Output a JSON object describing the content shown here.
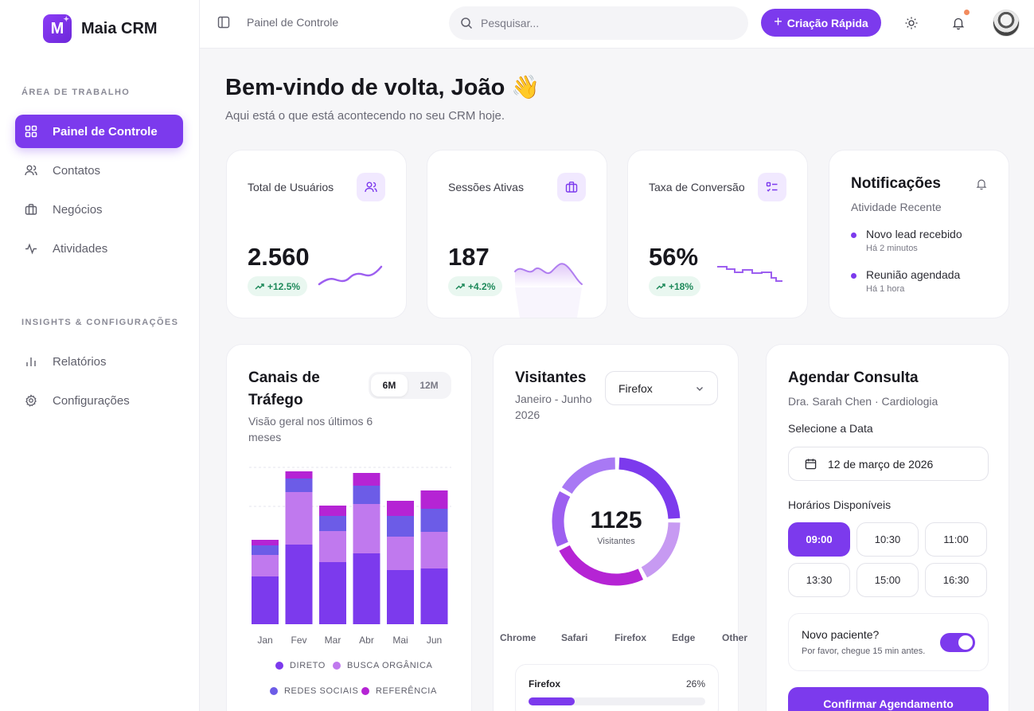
{
  "brand": {
    "logo_letter": "M",
    "name": "Maia CRM"
  },
  "sidebar": {
    "section_workspace": "ÁREA DE TRABALHO",
    "section_insights": "INSIGHTS & CONFIGURAÇÕES",
    "workspace_items": [
      {
        "label": "Painel de Controle",
        "icon": "grid-icon",
        "active": true
      },
      {
        "label": "Contatos",
        "icon": "users-icon"
      },
      {
        "label": "Negócios",
        "icon": "briefcase-icon"
      },
      {
        "label": "Atividades",
        "icon": "activity-icon"
      }
    ],
    "insight_items": [
      {
        "label": "Relatórios",
        "icon": "bar-chart-icon"
      },
      {
        "label": "Configurações",
        "icon": "gear-icon"
      }
    ]
  },
  "header": {
    "breadcrumb": "Painel de Controle",
    "search_placeholder": "Pesquisar...",
    "quick_create": "Criação Rápida"
  },
  "welcome": {
    "title": "Bem-vindo de volta, João 👋",
    "subtitle": "Aqui está o que está acontecendo no seu CRM hoje."
  },
  "stats": [
    {
      "title": "Total de Usuários",
      "value": "2.560",
      "change": "+12.5%",
      "icon": "users-icon"
    },
    {
      "title": "Sessões Ativas",
      "value": "187",
      "change": "+4.2%",
      "icon": "briefcase-icon"
    },
    {
      "title": "Taxa de Conversão",
      "value": "56%",
      "change": "+18%",
      "icon": "list-check-icon"
    }
  ],
  "notifications": {
    "title": "Notificações",
    "subtitle": "Atividade Recente",
    "items": [
      {
        "text": "Novo lead recebido",
        "time": "Há 2 minutos"
      },
      {
        "text": "Reunião agendada",
        "time": "Há 1 hora"
      }
    ]
  },
  "traffic": {
    "title": "Canais de Tráfego",
    "subtitle": "Visão geral nos últimos 6 meses",
    "toggle": [
      "6M",
      "12M"
    ],
    "colors": [
      "#7c3aed",
      "#c079ee",
      "#6c5ce7",
      "#b524d4"
    ]
  },
  "chart_data": [
    {
      "type": "bar",
      "stacked": true,
      "categories": [
        "Jan",
        "Fev",
        "Mar",
        "Abr",
        "Mai",
        "Jun"
      ],
      "series": [
        {
          "name": "DIRETO",
          "values": [
            60,
            100,
            78,
            89,
            68,
            70
          ]
        },
        {
          "name": "BUSCA ORGÂNICA",
          "values": [
            27,
            66,
            39,
            62,
            42,
            46
          ]
        },
        {
          "name": "REDES SOCIAIS",
          "values": [
            12,
            17,
            19,
            23,
            26,
            29
          ]
        },
        {
          "name": "REFERÊNCIA",
          "values": [
            7,
            9,
            13,
            16,
            19,
            23
          ]
        }
      ],
      "grid": true,
      "legend": "bottom"
    },
    {
      "type": "pie",
      "donut": true,
      "center_value": "1125",
      "center_label": "Visitantes",
      "categories": [
        "Chrome",
        "Safari",
        "Firefox",
        "Edge",
        "Other"
      ],
      "values": [
        275,
        200,
        287,
        173,
        190
      ],
      "colors": [
        "#7c3aed",
        "#c79af2",
        "#b524d4",
        "#9d5ff0",
        "#a879f4"
      ]
    }
  ],
  "visitors": {
    "title": "Visitantes",
    "subtitle": "Janeiro - Junho 2026",
    "select_value": "Firefox",
    "detail": {
      "label": "Firefox",
      "percent": "26%",
      "fill": 0.26
    }
  },
  "appointment": {
    "title": "Agendar Consulta",
    "doctor": "Dra. Sarah Chen · Cardiologia",
    "date_label": "Selecione a Data",
    "date_value": "12 de março de 2026",
    "slots_label": "Horários Disponíveis",
    "slots": [
      "09:00",
      "10:30",
      "11:00",
      "13:30",
      "15:00",
      "16:30"
    ],
    "selected_slot": "09:00",
    "new_patient_title": "Novo paciente?",
    "new_patient_note": "Por favor, chegue 15 min antes.",
    "new_patient_on": true,
    "confirm": "Confirmar Agendamento"
  }
}
